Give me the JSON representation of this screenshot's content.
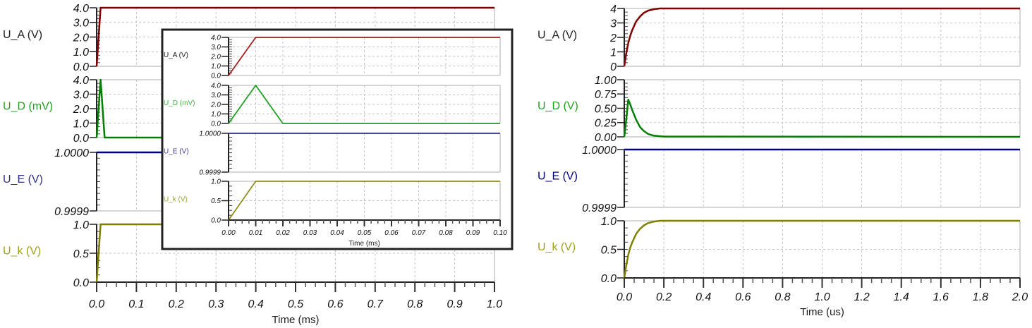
{
  "chart_data": [
    {
      "id": "left",
      "type": "line",
      "xlabel": "Time (ms)",
      "xlim": [
        0,
        1.0
      ],
      "xticks": [
        "0.0",
        "0.1",
        "0.2",
        "0.3",
        "0.4",
        "0.5",
        "0.6",
        "0.7",
        "0.8",
        "0.9",
        "1.0"
      ],
      "grid": true,
      "panels": [
        {
          "name": "U_A (V)",
          "color": "#800000",
          "label_color": "#202020",
          "ylim": [
            0,
            4
          ],
          "yticks": [
            "0.0",
            "1.0",
            "2.0",
            "3.0",
            "4.0"
          ],
          "points": [
            [
              0,
              0
            ],
            [
              0.01,
              4
            ],
            [
              1.0,
              4
            ]
          ]
        },
        {
          "name": "U_D (mV)",
          "color": "#008000",
          "label_color": "#22a022",
          "ylim": [
            0,
            4
          ],
          "yticks": [
            "0.0",
            "1.0",
            "2.0",
            "3.0",
            "4.0"
          ],
          "points": [
            [
              0,
              0
            ],
            [
              0.01,
              4
            ],
            [
              0.02,
              0
            ],
            [
              1.0,
              0
            ]
          ]
        },
        {
          "name": "U_E (V)",
          "color": "#000080",
          "label_color": "#30308a",
          "ylim": [
            0.9999,
            1.0
          ],
          "yticks": [
            "0.9999",
            "1.0000"
          ],
          "points": [
            [
              0,
              1.0
            ],
            [
              1.0,
              1.0
            ]
          ]
        },
        {
          "name": "U_k (V)",
          "color": "#808000",
          "label_color": "#a0a020",
          "ylim": [
            0,
            1
          ],
          "yticks": [
            "0.0",
            "0.5",
            "1.0"
          ],
          "points": [
            [
              0,
              0
            ],
            [
              0.01,
              1
            ],
            [
              1.0,
              1
            ]
          ]
        }
      ]
    },
    {
      "id": "inset",
      "type": "line",
      "xlabel": "Time (ms)",
      "xlim": [
        0,
        0.1
      ],
      "xticks": [
        "0.00",
        "0.01",
        "0.02",
        "0.03",
        "0.04",
        "0.05",
        "0.06",
        "0.07",
        "0.08",
        "0.09",
        "0.10"
      ],
      "grid": true,
      "panels": [
        {
          "name": "U_A (V)",
          "color": "#a02020",
          "label_color": "#202020",
          "ylim": [
            0,
            4
          ],
          "yticks": [
            "0.0",
            "1.0",
            "2.0",
            "3.0",
            "4.0"
          ],
          "points": [
            [
              0,
              0
            ],
            [
              0.01,
              4
            ],
            [
              0.1,
              4
            ]
          ]
        },
        {
          "name": "U_D (mV)",
          "color": "#22a022",
          "label_color": "#40b040",
          "ylim": [
            0,
            4
          ],
          "yticks": [
            "0.0",
            "1.0",
            "2.0",
            "3.0",
            "4.0"
          ],
          "points": [
            [
              0,
              0
            ],
            [
              0.01,
              4
            ],
            [
              0.02,
              0
            ],
            [
              0.1,
              0
            ]
          ]
        },
        {
          "name": "U_E (V)",
          "color": "#303090",
          "label_color": "#4040a0",
          "ylim": [
            0.9999,
            1.0
          ],
          "yticks": [
            "0.9999",
            "1.0000"
          ],
          "points": [
            [
              0,
              1.0
            ],
            [
              0.1,
              1.0
            ]
          ]
        },
        {
          "name": "U_k (V)",
          "color": "#909020",
          "label_color": "#a0a030",
          "ylim": [
            0,
            1
          ],
          "yticks": [
            "0.0",
            "0.5",
            "1.0"
          ],
          "points": [
            [
              0,
              0
            ],
            [
              0.01,
              1
            ],
            [
              0.1,
              1
            ]
          ]
        }
      ]
    },
    {
      "id": "right",
      "type": "line",
      "xlabel": "Time (us)",
      "xlim": [
        0,
        2.0
      ],
      "xticks": [
        "0.0",
        "0.2",
        "0.4",
        "0.6",
        "0.8",
        "1.0",
        "1.2",
        "1.4",
        "1.6",
        "1.8",
        "2.0"
      ],
      "grid": true,
      "panels": [
        {
          "name": "U_A (V)",
          "color": "#800000",
          "label_color": "#202020",
          "ylim": [
            0,
            4
          ],
          "yticks": [
            "0",
            "1",
            "2",
            "3",
            "4"
          ],
          "points": [
            [
              0,
              0
            ],
            [
              0.01,
              0.9
            ],
            [
              0.02,
              1.6
            ],
            [
              0.03,
              2.1
            ],
            [
              0.04,
              2.5
            ],
            [
              0.06,
              3.1
            ],
            [
              0.08,
              3.45
            ],
            [
              0.1,
              3.7
            ],
            [
              0.12,
              3.85
            ],
            [
              0.15,
              3.95
            ],
            [
              0.18,
              4.0
            ],
            [
              2.0,
              4.0
            ]
          ]
        },
        {
          "name": "U_D (V)",
          "color": "#008000",
          "label_color": "#22a022",
          "ylim": [
            0,
            1
          ],
          "yticks": [
            "0.00",
            "0.25",
            "0.50",
            "0.75",
            "1.00"
          ],
          "points": [
            [
              0,
              0
            ],
            [
              0.01,
              0.3
            ],
            [
              0.02,
              0.65
            ],
            [
              0.03,
              0.57
            ],
            [
              0.04,
              0.47
            ],
            [
              0.06,
              0.3
            ],
            [
              0.08,
              0.17
            ],
            [
              0.1,
              0.1
            ],
            [
              0.12,
              0.05
            ],
            [
              0.15,
              0.02
            ],
            [
              0.2,
              0.005
            ],
            [
              2.0,
              0
            ]
          ]
        },
        {
          "name": "U_E (V)",
          "color": "#000080",
          "label_color": "#000080",
          "ylim": [
            0.9999,
            1.0
          ],
          "yticks": [
            "0.9999",
            "1.0000"
          ],
          "points": [
            [
              0,
              1.0
            ],
            [
              2.0,
              1.0
            ]
          ]
        },
        {
          "name": "U_k (V)",
          "color": "#808000",
          "label_color": "#a0a020",
          "ylim": [
            0,
            1
          ],
          "yticks": [
            "0.0",
            "0.5",
            "1.0"
          ],
          "points": [
            [
              0,
              0
            ],
            [
              0.01,
              0.22
            ],
            [
              0.02,
              0.4
            ],
            [
              0.03,
              0.53
            ],
            [
              0.04,
              0.62
            ],
            [
              0.06,
              0.77
            ],
            [
              0.08,
              0.86
            ],
            [
              0.1,
              0.92
            ],
            [
              0.12,
              0.96
            ],
            [
              0.15,
              0.985
            ],
            [
              0.18,
              1.0
            ],
            [
              2.0,
              1.0
            ]
          ]
        }
      ]
    }
  ]
}
